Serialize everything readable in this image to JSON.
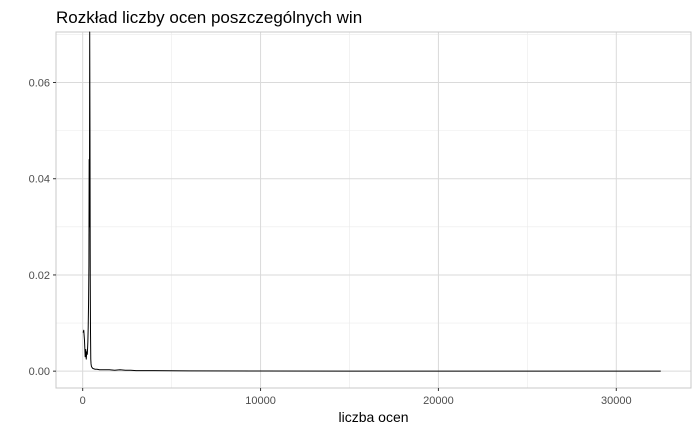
{
  "chart_data": {
    "type": "line",
    "title": "Rozkład liczby ocen poszczególnych win",
    "xlabel": "liczba ocen",
    "ylabel": "",
    "xlim": [
      -1500,
      34200
    ],
    "ylim": [
      -0.0035,
      0.0705
    ],
    "x_ticks": [
      0,
      10000,
      20000,
      30000
    ],
    "x_tick_labels": [
      "0",
      "10000",
      "20000",
      "30000"
    ],
    "y_ticks": [
      0.0,
      0.02,
      0.04,
      0.06
    ],
    "y_tick_labels": [
      "0.00",
      "0.02",
      "0.04",
      "0.06"
    ],
    "grid": true,
    "legend": "none",
    "series": [
      {
        "color": "#000000",
        "x": [
          25,
          60,
          100,
          140,
          175,
          200,
          230,
          260,
          290,
          310,
          330,
          350,
          365,
          380,
          395,
          410,
          425,
          440,
          455,
          470,
          490,
          520,
          560,
          620,
          700,
          800,
          950,
          1100,
          1300,
          1500,
          1800,
          2100,
          2400,
          2700,
          3000,
          4000,
          6000,
          10000,
          15000,
          20000,
          25000,
          30000,
          32500
        ],
        "values": [
          0.008,
          0.0085,
          0.0065,
          0.003,
          0.0045,
          0.0025,
          0.004,
          0.0035,
          0.006,
          0.009,
          0.014,
          0.022,
          0.044,
          0.03,
          0.0705,
          0.05,
          0.02,
          0.008,
          0.0025,
          0.0015,
          0.001,
          0.0008,
          0.0006,
          0.0005,
          0.0004,
          0.0004,
          0.0003,
          0.0003,
          0.0003,
          0.0003,
          0.0002,
          0.0003,
          0.0002,
          0.0002,
          0.0001,
          0.0001,
          5e-05,
          3e-05,
          2e-05,
          2e-05,
          1e-05,
          1e-05,
          1e-05
        ]
      }
    ]
  }
}
